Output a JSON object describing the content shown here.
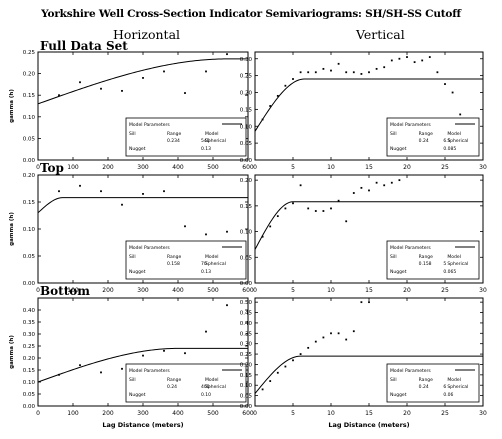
{
  "title": "Yorkshire Well Cross-Section Indicator Semivariograms: SH/SH-SS Cutoff",
  "column_headers": [
    "Horizontal",
    "Vertical"
  ],
  "row_headers": [
    "Full Data Set",
    "Top",
    "Bottom"
  ],
  "legend": {
    "heading": "Model Parameters",
    "col_labels": [
      "Sill",
      "Range",
      "Model"
    ],
    "nugget_label": "Nugget"
  },
  "chart_data": [
    {
      "type": "scatter",
      "panel": "full-horizontal",
      "xlabel": "",
      "ylabel": "gamma (h)",
      "xlim": [
        0,
        600
      ],
      "ylim": [
        0,
        0.25
      ],
      "xticks": [
        0,
        100,
        200,
        300,
        400,
        500,
        600
      ],
      "yticks": [
        0.0,
        0.05,
        0.1,
        0.15,
        0.2,
        0.25
      ],
      "ytick_labels": [
        "0.00",
        "0.05",
        "0.10",
        "0.15",
        "0.20",
        "0.25"
      ],
      "points": [
        [
          60,
          0.15
        ],
        [
          120,
          0.18
        ],
        [
          180,
          0.165
        ],
        [
          240,
          0.16
        ],
        [
          300,
          0.19
        ],
        [
          360,
          0.205
        ],
        [
          420,
          0.155
        ],
        [
          480,
          0.205
        ],
        [
          540,
          0.245
        ]
      ],
      "model": {
        "type": "spherical",
        "sill": 0.234,
        "range": 540,
        "nugget": 0.13
      },
      "legend_values": {
        "sill": "0.234",
        "range": "540",
        "nugget": "0.13"
      }
    },
    {
      "type": "scatter",
      "panel": "full-vertical",
      "xlabel": "",
      "ylabel": "",
      "xlim": [
        0,
        30
      ],
      "ylim": [
        0,
        0.32
      ],
      "xticks": [
        0,
        5,
        10,
        15,
        20,
        25,
        30
      ],
      "yticks": [
        0.0,
        0.05,
        0.1,
        0.15,
        0.2,
        0.25,
        0.3
      ],
      "ytick_labels": [
        "0.00",
        "0.05",
        "0.10",
        "0.15",
        "0.20",
        "0.25",
        "0.30"
      ],
      "points": [
        [
          1,
          0.12
        ],
        [
          2,
          0.16
        ],
        [
          3,
          0.19
        ],
        [
          4,
          0.22
        ],
        [
          5,
          0.24
        ],
        [
          6,
          0.26
        ],
        [
          7,
          0.26
        ],
        [
          8,
          0.26
        ],
        [
          9,
          0.27
        ],
        [
          10,
          0.265
        ],
        [
          11,
          0.285
        ],
        [
          12,
          0.26
        ],
        [
          13,
          0.26
        ],
        [
          14,
          0.255
        ],
        [
          15,
          0.26
        ],
        [
          16,
          0.27
        ],
        [
          17,
          0.275
        ],
        [
          18,
          0.295
        ],
        [
          19,
          0.3
        ],
        [
          20,
          0.305
        ],
        [
          21,
          0.29
        ],
        [
          22,
          0.295
        ],
        [
          23,
          0.305
        ],
        [
          24,
          0.26
        ],
        [
          25,
          0.225
        ],
        [
          26,
          0.2
        ],
        [
          27,
          0.135
        ]
      ],
      "model": {
        "type": "spherical",
        "sill": 0.24,
        "range": 6.5,
        "nugget": 0.085
      },
      "legend_values": {
        "sill": "0.24",
        "range": "6.5",
        "nugget": "0.085"
      }
    },
    {
      "type": "scatter",
      "panel": "top-horizontal",
      "xlabel": "",
      "ylabel": "gamma (h)",
      "xlim": [
        0,
        600
      ],
      "ylim": [
        0,
        0.2
      ],
      "xticks": [
        0,
        100,
        200,
        300,
        400,
        500,
        600
      ],
      "yticks": [
        0.0,
        0.05,
        0.1,
        0.15,
        0.2
      ],
      "ytick_labels": [
        "0.00",
        "0.05",
        "0.10",
        "0.15",
        "0.20"
      ],
      "points": [
        [
          60,
          0.17
        ],
        [
          120,
          0.18
        ],
        [
          180,
          0.17
        ],
        [
          240,
          0.145
        ],
        [
          300,
          0.165
        ],
        [
          360,
          0.17
        ],
        [
          420,
          0.105
        ],
        [
          480,
          0.09
        ],
        [
          540,
          0.095
        ]
      ],
      "model": {
        "type": "spherical",
        "sill": 0.158,
        "range": 70,
        "nugget": 0.13
      },
      "legend_values": {
        "sill": "0.158",
        "range": "70",
        "nugget": "0.13"
      }
    },
    {
      "type": "scatter",
      "panel": "top-vertical",
      "xlabel": "",
      "ylabel": "",
      "xlim": [
        0,
        30
      ],
      "ylim": [
        0,
        0.21
      ],
      "xticks": [
        0,
        5,
        10,
        15,
        20,
        25,
        30
      ],
      "yticks": [
        0.0,
        0.05,
        0.1,
        0.15,
        0.2
      ],
      "ytick_labels": [
        "0.00",
        "0.05",
        "0.10",
        "0.15",
        "0.20"
      ],
      "points": [
        [
          1,
          0.09
        ],
        [
          2,
          0.11
        ],
        [
          3,
          0.13
        ],
        [
          4,
          0.145
        ],
        [
          5,
          0.155
        ],
        [
          6,
          0.19
        ],
        [
          7,
          0.145
        ],
        [
          8,
          0.14
        ],
        [
          9,
          0.14
        ],
        [
          10,
          0.145
        ],
        [
          11,
          0.16
        ],
        [
          12,
          0.12
        ],
        [
          13,
          0.175
        ],
        [
          14,
          0.185
        ],
        [
          15,
          0.18
        ],
        [
          16,
          0.195
        ],
        [
          17,
          0.19
        ],
        [
          18,
          0.195
        ],
        [
          19,
          0.2
        ]
      ],
      "model": {
        "type": "spherical",
        "sill": 0.158,
        "range": 5,
        "nugget": 0.065
      },
      "legend_values": {
        "sill": "0.158",
        "range": "5",
        "nugget": "0.065"
      }
    },
    {
      "type": "scatter",
      "panel": "bottom-horizontal",
      "xlabel": "Lag Distance (meters)",
      "ylabel": "gamma (h)",
      "xlim": [
        0,
        600
      ],
      "ylim": [
        0,
        0.45
      ],
      "xticks": [
        0,
        100,
        200,
        300,
        400,
        500,
        600
      ],
      "yticks": [
        0.0,
        0.05,
        0.1,
        0.15,
        0.2,
        0.25,
        0.3,
        0.35,
        0.4
      ],
      "ytick_labels": [
        "0.00",
        "0.05",
        "0.10",
        "0.15",
        "0.20",
        "0.25",
        "0.30",
        "0.35",
        "0.40"
      ],
      "points": [
        [
          60,
          0.13
        ],
        [
          120,
          0.17
        ],
        [
          180,
          0.14
        ],
        [
          240,
          0.155
        ],
        [
          300,
          0.21
        ],
        [
          360,
          0.23
        ],
        [
          420,
          0.22
        ],
        [
          480,
          0.31
        ],
        [
          540,
          0.42
        ]
      ],
      "model": {
        "type": "spherical",
        "sill": 0.24,
        "range": 400,
        "nugget": 0.1
      },
      "legend_values": {
        "sill": "0.24",
        "range": "400",
        "nugget": "0.10"
      }
    },
    {
      "type": "scatter",
      "panel": "bottom-vertical",
      "xlabel": "Lag Distance (meters)",
      "ylabel": "",
      "xlim": [
        0,
        30
      ],
      "ylim": [
        0,
        0.52
      ],
      "xticks": [
        0,
        5,
        10,
        15,
        20,
        25,
        30
      ],
      "yticks": [
        0.0,
        0.05,
        0.1,
        0.15,
        0.2,
        0.25,
        0.3,
        0.35,
        0.4,
        0.45,
        0.5
      ],
      "ytick_labels": [
        "0.00",
        "0.05",
        "0.10",
        "0.15",
        "0.20",
        "0.25",
        "0.30",
        "0.35",
        "0.40",
        "0.45",
        "0.50"
      ],
      "points": [
        [
          1,
          0.08
        ],
        [
          2,
          0.12
        ],
        [
          3,
          0.16
        ],
        [
          4,
          0.19
        ],
        [
          5,
          0.22
        ],
        [
          6,
          0.25
        ],
        [
          7,
          0.28
        ],
        [
          8,
          0.31
        ],
        [
          9,
          0.33
        ],
        [
          10,
          0.35
        ],
        [
          11,
          0.35
        ],
        [
          12,
          0.32
        ],
        [
          13,
          0.36
        ],
        [
          14,
          0.5
        ],
        [
          15,
          0.5
        ]
      ],
      "model": {
        "type": "spherical",
        "sill": 0.24,
        "range": 6,
        "nugget": 0.06
      },
      "legend_values": {
        "sill": "0.24",
        "range": "6",
        "nugget": "0.06"
      }
    }
  ]
}
